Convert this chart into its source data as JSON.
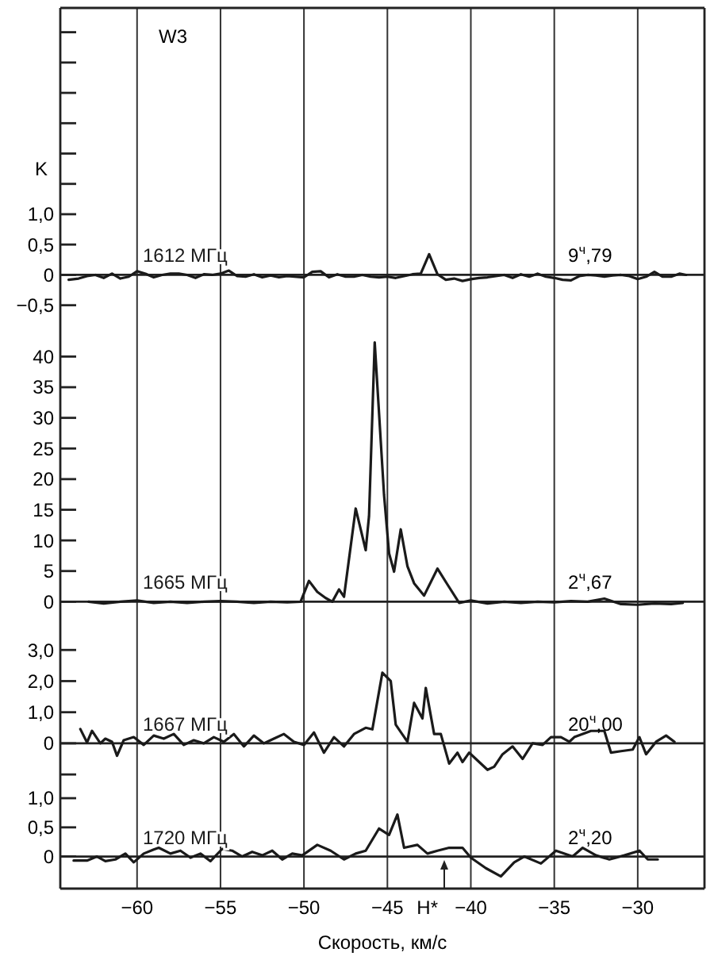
{
  "chart_data": [
    {
      "type": "line",
      "title": "W3",
      "ylabel": "K",
      "xlim": [
        -64.6,
        -26
      ],
      "xticks": [
        -60,
        -55,
        -50,
        -45,
        -40,
        -35,
        -30
      ],
      "ylim": [
        -0.7,
        4.4
      ],
      "yticks": [
        {
          "value": -0.5,
          "label": "−0,5"
        },
        0,
        {
          "value": 0.5,
          "label": "0,5"
        },
        {
          "value": 1,
          "label": "1,0"
        },
        {
          "value": 1.5,
          "label": null
        },
        {
          "value": 2,
          "label": null
        },
        {
          "value": 2.5,
          "label": null
        },
        {
          "value": 3,
          "label": null
        },
        {
          "value": 3.5,
          "label": null
        },
        {
          "value": 4,
          "label": null
        }
      ],
      "grid": "x",
      "tick_labels": "y",
      "ref_lines": [
        {
          "axis": "y",
          "value": 0
        }
      ],
      "annotations": [
        "9$^{ч}$,79"
      ],
      "series": [
        {
          "name": "1612 МГц",
          "color": "#1a1a1a",
          "x": [
            -64.1,
            -63.5,
            -63,
            -62.5,
            -62,
            -61.5,
            -61,
            -60.5,
            -60,
            -59.5,
            -59,
            -58.5,
            -58,
            -57.5,
            -57,
            -56.5,
            -56,
            -55.5,
            -55,
            -54.5,
            -54,
            -53.5,
            -53,
            -52.5,
            -52,
            -51.5,
            -51,
            -50,
            -49.5,
            -49,
            -48.5,
            -48,
            -47.5,
            -47,
            -46.5,
            -46,
            -45.5,
            -45,
            -44.5,
            -44,
            -43.5,
            -43,
            -42.5,
            -42,
            -41.5,
            -41,
            -40.5,
            -40,
            -39.5,
            -39,
            -38.5,
            -38,
            -37.5,
            -37,
            -36.5,
            -36,
            -35.5,
            -35,
            -34.5,
            -34,
            -33.5,
            -33,
            -32.5,
            -32,
            -31.5,
            -31,
            -30.5,
            -30,
            -29.5,
            -29,
            -28.5,
            -28,
            -27.5,
            -27.1
          ],
          "values": [
            -0.08,
            -0.06,
            -0.02,
            0,
            -0.05,
            0.02,
            -0.06,
            -0.03,
            0.06,
            0.02,
            -0.04,
            0,
            0.02,
            0.02,
            0,
            -0.05,
            0.01,
            0,
            0.02,
            0.07,
            -0.02,
            -0.03,
            0.01,
            -0.04,
            -0.01,
            -0.04,
            -0.02,
            -0.04,
            0.05,
            0.06,
            -0.04,
            0.01,
            -0.03,
            -0.03,
            0,
            -0.03,
            -0.04,
            -0.03,
            -0.05,
            -0.02,
            0.01,
            0.02,
            0.34,
            0.01,
            -0.08,
            -0.06,
            -0.1,
            -0.07,
            -0.05,
            -0.04,
            -0.02,
            0,
            -0.05,
            0.01,
            -0.03,
            0.02,
            -0.03,
            -0.05,
            -0.08,
            -0.09,
            -0.02,
            0,
            -0.01,
            -0.03,
            -0.01,
            0,
            -0.02,
            -0.07,
            -0.03,
            0.05,
            -0.03,
            -0.03,
            0.02,
            0
          ]
        }
      ]
    },
    {
      "type": "line",
      "xlim": [
        -64.6,
        -26
      ],
      "xticks": [
        -60,
        -55,
        -50,
        -45,
        -40,
        -35,
        -30
      ],
      "ylim": [
        -2.8,
        46.4
      ],
      "yticks": [
        0,
        5,
        10,
        15,
        20,
        25,
        30,
        35,
        40
      ],
      "grid": "x",
      "tick_labels": "y",
      "ref_lines": [
        {
          "axis": "y",
          "value": 0
        }
      ],
      "annotations": [
        "2$^{ч}$,67"
      ],
      "series": [
        {
          "name": "1665 МГц",
          "color": "#1a1a1a",
          "x": [
            -62.9,
            -62,
            -61,
            -60,
            -59,
            -58,
            -57,
            -56,
            -55,
            -54,
            -53,
            -52,
            -51,
            -50.2,
            -49.7,
            -49.2,
            -48.7,
            -48.3,
            -47.9,
            -47.6,
            -46.9,
            -46.3,
            -46.1,
            -45.76,
            -45.2,
            -44.9,
            -44.6,
            -44.2,
            -43.8,
            -43.4,
            -42.8,
            -42,
            -41.4,
            -40.7,
            -40,
            -39,
            -38,
            -37,
            -36,
            -35,
            -34,
            -33,
            -32,
            -31,
            -30,
            -29,
            -28,
            -27.3
          ],
          "values": [
            0,
            -0.3,
            0,
            0.2,
            -0.2,
            0,
            -0.2,
            0,
            0.1,
            0,
            -0.2,
            0,
            -0.1,
            0,
            3.4,
            1.6,
            0.6,
            0,
            2,
            0.8,
            15.2,
            8.4,
            14,
            42.3,
            17.4,
            7.9,
            4.9,
            11.8,
            5.8,
            3,
            1,
            5.4,
            2.8,
            -0.2,
            0.2,
            -0.3,
            0,
            -0.2,
            0,
            -0.1,
            0.1,
            0,
            0.5,
            -0.4,
            -0.5,
            -0.3,
            -0.4,
            -0.2
          ]
        }
      ]
    },
    {
      "type": "line",
      "xlim": [
        -64.6,
        -26
      ],
      "xticks": [
        -60,
        -55,
        -50,
        -45,
        -40,
        -35,
        -30
      ],
      "ylim": [
        -1.2,
        4.0
      ],
      "yticks": [
        {
          "value": -1,
          "label": null
        },
        0,
        {
          "value": 1,
          "label": "1,0"
        },
        {
          "value": 2,
          "label": "2,0"
        },
        {
          "value": 3,
          "label": "3,0"
        }
      ],
      "grid": "x",
      "tick_labels": "y",
      "ref_lines": [
        {
          "axis": "y",
          "value": 0
        }
      ],
      "annotations": [
        "20$^{ч}$,00"
      ],
      "series": [
        {
          "name": "1667 МГц",
          "color": "#1a1a1a",
          "x": [
            -63.4,
            -63,
            -62.7,
            -62.2,
            -61.9,
            -61.5,
            -61.2,
            -60.8,
            -60.2,
            -59.6,
            -59,
            -58.4,
            -57.8,
            -57.2,
            -56.6,
            -56,
            -55.4,
            -54.8,
            -54.2,
            -53.6,
            -53,
            -52.4,
            -51.8,
            -51.2,
            -50.6,
            -50,
            -49.4,
            -48.8,
            -48.2,
            -47.6,
            -47,
            -46.3,
            -45.9,
            -45.3,
            -44.8,
            -44.5,
            -43.8,
            -43.4,
            -42.9,
            -42.7,
            -42.2,
            -41.8,
            -41.3,
            -40.8,
            -40.5,
            -40.1,
            -39.6,
            -39,
            -38.6,
            -38.1,
            -37.5,
            -36.9,
            -36.3,
            -35.7,
            -35.2,
            -34.6,
            -34.1,
            -33.8,
            -32.8,
            -32,
            -31.6,
            -31,
            -30.3,
            -29.9,
            -29.5,
            -28.9,
            -28.3,
            -27.8
          ],
          "values": [
            0.46,
            0.03,
            0.4,
            0,
            0.15,
            0.05,
            -0.4,
            0.1,
            0.2,
            -0.05,
            0.25,
            0.15,
            0.3,
            -0.05,
            0.1,
            0,
            0.2,
            0.05,
            0.3,
            -0.1,
            0.25,
            0,
            0.15,
            0.3,
            0.05,
            -0.05,
            0.35,
            -0.3,
            0.2,
            -0.1,
            0.3,
            0.5,
            0.45,
            2.27,
            2.0,
            0.6,
            0.05,
            1.3,
            0.8,
            1.78,
            0.3,
            0.3,
            -0.65,
            -0.3,
            -0.6,
            -0.3,
            -0.55,
            -0.85,
            -0.75,
            -0.35,
            -0.1,
            -0.5,
            0,
            -0.05,
            0.2,
            0.2,
            0.05,
            0.2,
            0.4,
            0.4,
            -0.3,
            -0.25,
            -0.2,
            0.2,
            -0.35,
            0.05,
            0.25,
            0.05
          ]
        }
      ]
    },
    {
      "type": "line",
      "xlabel": "Скорость, км/с",
      "xlim": [
        -64.6,
        -26
      ],
      "xticks": [
        {
          "value": -60,
          "label": "−60"
        },
        {
          "value": -55,
          "label": "−55"
        },
        {
          "value": -50,
          "label": "−50"
        },
        {
          "value": -45,
          "label": "−45"
        },
        {
          "value": -40,
          "label": "−40"
        },
        {
          "value": -35,
          "label": "−35"
        },
        {
          "value": -30,
          "label": "−30"
        }
      ],
      "ylim": [
        -0.55,
        1.3
      ],
      "yticks": [
        0,
        {
          "value": 0.5,
          "label": "0,5"
        },
        {
          "value": 1,
          "label": "1,0"
        }
      ],
      "grid": "x",
      "ref_lines": [
        {
          "axis": "y",
          "value": 0
        }
      ],
      "annotations": [
        "2$^{ч}$,20",
        "H*"
      ],
      "series": [
        {
          "name": "1720 МГц",
          "color": "#1a1a1a",
          "x": [
            -63.8,
            -63,
            -62.4,
            -61.9,
            -61.3,
            -60.7,
            -60.2,
            -59.6,
            -59,
            -58.7,
            -58,
            -57.4,
            -56.8,
            -56.2,
            -55.6,
            -54.9,
            -54.3,
            -53.7,
            -53.1,
            -52.5,
            -51.9,
            -51.3,
            -50.7,
            -50.1,
            -49.2,
            -48.4,
            -47.6,
            -46.9,
            -46.3,
            -45.5,
            -44.9,
            -44.4,
            -44,
            -43.2,
            -42.6,
            -42,
            -41.3,
            -40.5,
            -40,
            -39.1,
            -38.2,
            -37.4,
            -36.8,
            -35.8,
            -34.9,
            -33.9,
            -33.3,
            -32.5,
            -31.7,
            -30.8,
            -29.9,
            -29.4,
            -28.8
          ],
          "values": [
            -0.07,
            -0.07,
            0,
            -0.08,
            -0.05,
            0.05,
            -0.1,
            0.05,
            0.12,
            0.15,
            0.05,
            0.1,
            -0.02,
            0.05,
            -0.08,
            0.13,
            0.1,
            0,
            0.08,
            0.02,
            0.1,
            -0.05,
            0.05,
            0.02,
            0.2,
            0.1,
            -0.05,
            0.05,
            0.1,
            0.48,
            0.37,
            0.72,
            0.15,
            0.2,
            0.05,
            0.1,
            0.15,
            0.15,
            -0.02,
            -0.2,
            -0.34,
            -0.1,
            0,
            -0.12,
            0.1,
            0,
            0.15,
            0.02,
            -0.05,
            0.02,
            0.1,
            -0.05,
            -0.05
          ]
        }
      ]
    }
  ]
}
